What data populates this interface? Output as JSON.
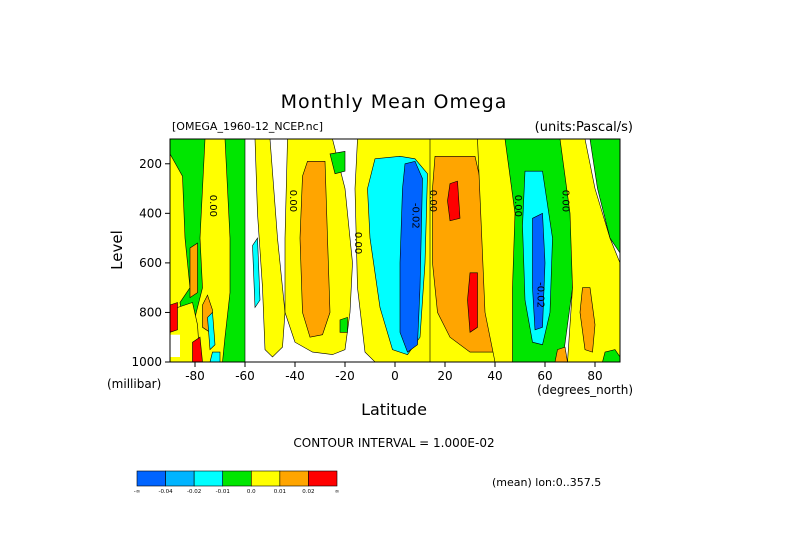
{
  "chart_data": {
    "type": "heatmap",
    "title": "Monthly Mean Omega",
    "file_label": "[OMEGA_1960-12_NCEP.nc]",
    "units_label": "(units:Pascal/s)",
    "xlabel": "Latitude",
    "xunit": "(degrees_north)",
    "ylabel": "Level",
    "yunit": "(millibar)",
    "xlim": [
      -90,
      90
    ],
    "ylim": [
      1000,
      100
    ],
    "x_ticks": [
      "-80",
      "-60",
      "-40",
      "-20",
      "0",
      "20",
      "40",
      "60",
      "80"
    ],
    "y_ticks": [
      "200",
      "400",
      "600",
      "800",
      "1000"
    ],
    "contour_interval_text": "CONTOUR INTERVAL = 1.000E-02",
    "mean_text": "(mean) lon:0..357.5",
    "contour_labels": [
      {
        "text": "0.00",
        "lat": -74,
        "level": 370
      },
      {
        "text": "0.00",
        "lat": -42,
        "level": 350
      },
      {
        "text": "0.00",
        "lat": -16,
        "level": 520
      },
      {
        "text": "-0.02",
        "lat": 7,
        "level": 410
      },
      {
        "text": "0.00",
        "lat": 14,
        "level": 350
      },
      {
        "text": "0.00",
        "lat": 48,
        "level": 370
      },
      {
        "text": "-0.02",
        "lat": 57,
        "level": 730
      },
      {
        "text": "0.00",
        "lat": 67,
        "level": 350
      }
    ],
    "regions": [
      {
        "cls": "green",
        "poly": [
          [
            -90,
            100
          ],
          [
            -60,
            100
          ],
          [
            -60,
            1000
          ],
          [
            -90,
            1000
          ]
        ]
      },
      {
        "cls": "yellow",
        "poly": [
          [
            -90,
            160
          ],
          [
            -85,
            250
          ],
          [
            -84,
            500
          ],
          [
            -82,
            700
          ],
          [
            -86,
            760
          ],
          [
            -84,
            900
          ],
          [
            -90,
            960
          ]
        ]
      },
      {
        "cls": "yellow",
        "poly": [
          [
            -76,
            100
          ],
          [
            -68,
            100
          ],
          [
            -67,
            300
          ],
          [
            -66,
            500
          ],
          [
            -66,
            720
          ],
          [
            -68,
            900
          ],
          [
            -69,
            1000
          ],
          [
            -79,
            1000
          ],
          [
            -80,
            820
          ],
          [
            -77,
            700
          ],
          [
            -78,
            500
          ],
          [
            -77,
            300
          ]
        ]
      },
      {
        "cls": "yellow",
        "poly": [
          [
            -87,
            780
          ],
          [
            -81,
            760
          ],
          [
            -79,
            850
          ],
          [
            -78,
            1000
          ],
          [
            -90,
            1000
          ],
          [
            -90,
            860
          ]
        ]
      },
      {
        "cls": "orange",
        "poly": [
          [
            -82,
            540
          ],
          [
            -79,
            520
          ],
          [
            -79,
            720
          ],
          [
            -82,
            740
          ]
        ]
      },
      {
        "cls": "orange",
        "poly": [
          [
            -77,
            770
          ],
          [
            -75,
            730
          ],
          [
            -73,
            790
          ],
          [
            -74,
            880
          ],
          [
            -77,
            860
          ]
        ]
      },
      {
        "cls": "red",
        "poly": [
          [
            -90,
            770
          ],
          [
            -87,
            760
          ],
          [
            -87,
            870
          ],
          [
            -90,
            880
          ]
        ]
      },
      {
        "cls": "red",
        "poly": [
          [
            -81,
            920
          ],
          [
            -78,
            900
          ],
          [
            -77,
            1000
          ],
          [
            -81,
            1000
          ]
        ]
      },
      {
        "cls": "cyan",
        "poly": [
          [
            -75,
            820
          ],
          [
            -73,
            800
          ],
          [
            -72,
            930
          ],
          [
            -74,
            950
          ]
        ]
      },
      {
        "cls": "cyan",
        "poly": [
          [
            -73,
            960
          ],
          [
            -70,
            960
          ],
          [
            -70,
            1000
          ],
          [
            -74,
            1000
          ]
        ]
      },
      {
        "cls": "yellow",
        "poly": [
          [
            -56,
            100
          ],
          [
            -50,
            100
          ],
          [
            -47,
            500
          ],
          [
            -44,
            800
          ],
          [
            -45,
            940
          ],
          [
            -49,
            980
          ],
          [
            -52,
            950
          ],
          [
            -53,
            700
          ],
          [
            -55,
            400
          ]
        ]
      },
      {
        "cls": "cyan",
        "poly": [
          [
            -57,
            530
          ],
          [
            -55,
            500
          ],
          [
            -54,
            750
          ],
          [
            -56,
            780
          ]
        ]
      },
      {
        "cls": "yellow",
        "poly": [
          [
            -43,
            100
          ],
          [
            -25,
            100
          ],
          [
            -20,
            300
          ],
          [
            -17,
            600
          ],
          [
            -18,
            800
          ],
          [
            -20,
            950
          ],
          [
            -25,
            970
          ],
          [
            -33,
            960
          ],
          [
            -40,
            920
          ],
          [
            -44,
            800
          ],
          [
            -44,
            500
          ]
        ]
      },
      {
        "cls": "orange",
        "poly": [
          [
            -35,
            190
          ],
          [
            -28,
            190
          ],
          [
            -27,
            500
          ],
          [
            -26,
            800
          ],
          [
            -29,
            890
          ],
          [
            -34,
            900
          ],
          [
            -37,
            800
          ],
          [
            -38,
            500
          ],
          [
            -37,
            250
          ]
        ]
      },
      {
        "cls": "green",
        "poly": [
          [
            -26,
            160
          ],
          [
            -20,
            150
          ],
          [
            -20,
            230
          ],
          [
            -24,
            240
          ]
        ]
      },
      {
        "cls": "green",
        "poly": [
          [
            -22,
            830
          ],
          [
            -19,
            820
          ],
          [
            -19,
            880
          ],
          [
            -22,
            880
          ]
        ]
      },
      {
        "cls": "yellow",
        "poly": [
          [
            -15,
            100
          ],
          [
            15,
            100
          ],
          [
            15,
            1000
          ],
          [
            -8,
            1000
          ],
          [
            -12,
            960
          ],
          [
            -15,
            700
          ],
          [
            -16,
            300
          ]
        ]
      },
      {
        "cls": "cyan",
        "poly": [
          [
            -8,
            180
          ],
          [
            2,
            170
          ],
          [
            8,
            180
          ],
          [
            13,
            240
          ],
          [
            12,
            600
          ],
          [
            10,
            900
          ],
          [
            5,
            970
          ],
          [
            -1,
            950
          ],
          [
            -6,
            780
          ],
          [
            -10,
            500
          ],
          [
            -11,
            300
          ]
        ]
      },
      {
        "cls": "blue",
        "poly": [
          [
            4,
            200
          ],
          [
            8,
            190
          ],
          [
            11,
            260
          ],
          [
            10,
            700
          ],
          [
            9,
            930
          ],
          [
            5,
            960
          ],
          [
            2,
            880
          ],
          [
            2,
            600
          ],
          [
            3,
            300
          ]
        ]
      },
      {
        "cls": "yellow",
        "poly": [
          [
            14,
            100
          ],
          [
            33,
            100
          ],
          [
            40,
            160
          ],
          [
            48,
            300
          ],
          [
            50,
            600
          ],
          [
            52,
            900
          ],
          [
            48,
            1000
          ],
          [
            14,
            1000
          ]
        ]
      },
      {
        "cls": "orange",
        "poly": [
          [
            16,
            170
          ],
          [
            32,
            170
          ],
          [
            36,
            350
          ],
          [
            38,
            600
          ],
          [
            42,
            900
          ],
          [
            40,
            960
          ],
          [
            30,
            960
          ],
          [
            22,
            900
          ],
          [
            17,
            800
          ],
          [
            15,
            600
          ],
          [
            15,
            300
          ]
        ]
      },
      {
        "cls": "red",
        "poly": [
          [
            22,
            280
          ],
          [
            25,
            270
          ],
          [
            26,
            420
          ],
          [
            22,
            430
          ],
          [
            21,
            350
          ]
        ]
      },
      {
        "cls": "red",
        "poly": [
          [
            30,
            640
          ],
          [
            33,
            640
          ],
          [
            33,
            860
          ],
          [
            30,
            880
          ],
          [
            29,
            750
          ]
        ]
      },
      {
        "cls": "yellow",
        "poly": [
          [
            33,
            100
          ],
          [
            45,
            100
          ],
          [
            50,
            300
          ],
          [
            52,
            600
          ],
          [
            51,
            850
          ],
          [
            48,
            1000
          ],
          [
            40,
            1000
          ],
          [
            36,
            800
          ]
        ]
      },
      {
        "cls": "green",
        "poly": [
          [
            44,
            100
          ],
          [
            68,
            100
          ],
          [
            70,
            300
          ],
          [
            71,
            700
          ],
          [
            67,
            1000
          ],
          [
            47,
            1000
          ],
          [
            47,
            700
          ],
          [
            48,
            400
          ]
        ]
      },
      {
        "cls": "cyan",
        "poly": [
          [
            52,
            230
          ],
          [
            59,
            230
          ],
          [
            63,
            500
          ],
          [
            62,
            800
          ],
          [
            59,
            930
          ],
          [
            55,
            920
          ],
          [
            52,
            750
          ],
          [
            51,
            450
          ]
        ]
      },
      {
        "cls": "blue",
        "poly": [
          [
            55,
            420
          ],
          [
            59,
            400
          ],
          [
            60,
            600
          ],
          [
            59,
            860
          ],
          [
            56,
            870
          ],
          [
            55,
            700
          ]
        ]
      },
      {
        "cls": "yellow",
        "poly": [
          [
            66,
            100
          ],
          [
            76,
            100
          ],
          [
            80,
            300
          ],
          [
            86,
            500
          ],
          [
            90,
            600
          ],
          [
            90,
            1000
          ],
          [
            69,
            1000
          ],
          [
            71,
            700
          ],
          [
            70,
            400
          ]
        ]
      },
      {
        "cls": "orange",
        "poly": [
          [
            75,
            700
          ],
          [
            78,
            700
          ],
          [
            80,
            850
          ],
          [
            79,
            960
          ],
          [
            76,
            950
          ],
          [
            74,
            800
          ]
        ]
      },
      {
        "cls": "orange",
        "poly": [
          [
            65,
            950
          ],
          [
            68,
            940
          ],
          [
            69,
            1000
          ],
          [
            64,
            1000
          ]
        ]
      },
      {
        "cls": "green",
        "poly": [
          [
            78,
            100
          ],
          [
            90,
            100
          ],
          [
            90,
            560
          ],
          [
            86,
            500
          ],
          [
            81,
            300
          ]
        ]
      },
      {
        "cls": "green",
        "poly": [
          [
            84,
            960
          ],
          [
            88,
            950
          ],
          [
            90,
            980
          ],
          [
            90,
            1000
          ],
          [
            83,
            1000
          ]
        ]
      },
      {
        "cls": "white",
        "poly": [
          [
            -90,
            890
          ],
          [
            -86,
            890
          ],
          [
            -86,
            980
          ],
          [
            -90,
            980
          ]
        ]
      }
    ],
    "colorbar": {
      "colors": [
        "#0064ff",
        "#00b4ff",
        "#00ffff",
        "#00e600",
        "#ffff00",
        "#ffa500",
        "#ff0000"
      ],
      "labels": [
        "-∞",
        "-0.04",
        "-0.02",
        "-0.01",
        "0.0",
        "0.01",
        "0.02",
        "∞"
      ]
    }
  },
  "colors": {
    "blue": "#0064ff",
    "lightblue": "#00b4ff",
    "cyan": "#00ffff",
    "green": "#00e600",
    "yellow": "#ffff00",
    "orange": "#ffa500",
    "red": "#ff0000",
    "white": "#ffffff"
  }
}
